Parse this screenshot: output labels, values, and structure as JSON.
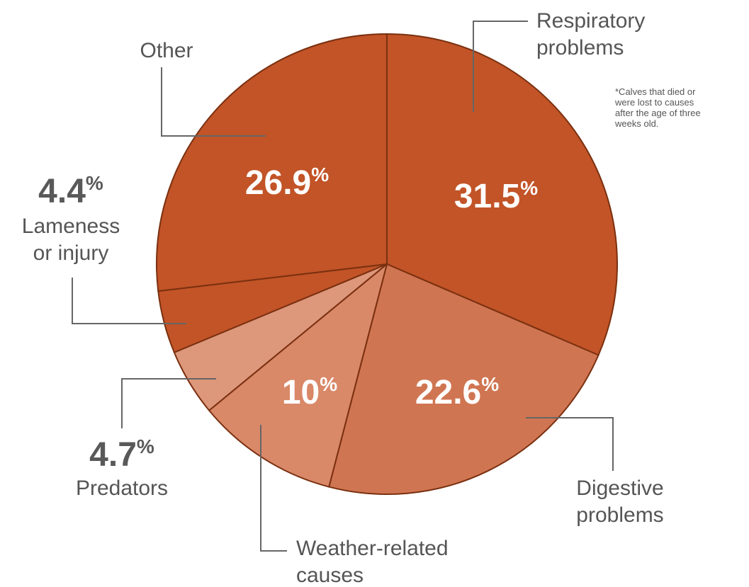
{
  "chart_data": {
    "type": "pie",
    "categories": [
      "Respiratory problems",
      "Digestive problems",
      "Weather-related causes",
      "Predators",
      "Lameness or injury",
      "Other"
    ],
    "values": [
      31.5,
      22.6,
      10,
      4.7,
      4.4,
      26.9
    ],
    "unit": "%",
    "colors": [
      "#c25427",
      "#d07552",
      "#d98868",
      "#dd977b",
      "#c25427",
      "#c25427"
    ],
    "note": "*Calves that died or were lost to causes after the age of three weeks old."
  }
}
